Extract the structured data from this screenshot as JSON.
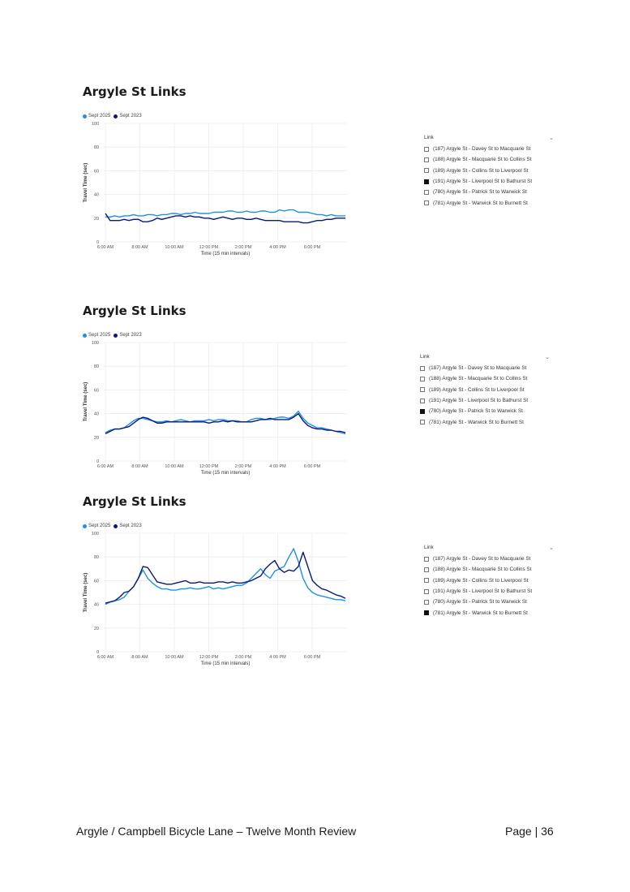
{
  "colors": {
    "sept2025": "#1e90e8",
    "sept2023": "#0a1a7a",
    "grid": "#ececec"
  },
  "chart_data": [
    {
      "type": "line",
      "title": "Argyle St Links",
      "xlabel": "Time (15 min intervals)",
      "ylabel": "Travel Time (sec)",
      "ylim": [
        0,
        100
      ],
      "yticks": [
        "100",
        "80",
        "60",
        "40",
        "20",
        "0"
      ],
      "xticks": [
        "6:00 AM",
        "8:00 AM",
        "10:00 AM",
        "12:00 PM",
        "2:00 PM",
        "4:00 PM",
        "6:00 PM"
      ],
      "legend": [
        "Sept 2025",
        "Sept 2023"
      ],
      "series": [
        {
          "name": "Sept 2025",
          "values": [
            21,
            21,
            22,
            21,
            22,
            22,
            23,
            22,
            22,
            23,
            23,
            22,
            23,
            23,
            24,
            24,
            23,
            24,
            24,
            25,
            24,
            24,
            24,
            25,
            25,
            25,
            26,
            26,
            25,
            25,
            26,
            25,
            25,
            26,
            26,
            25,
            25,
            27,
            26,
            27,
            27,
            25,
            25,
            25,
            24,
            23,
            23,
            22,
            23,
            22,
            22,
            22
          ]
        },
        {
          "name": "Sept 2023",
          "values": [
            24,
            18,
            18,
            18,
            19,
            18,
            19,
            19,
            17,
            17,
            18,
            20,
            19,
            20,
            21,
            22,
            22,
            21,
            22,
            21,
            21,
            20,
            20,
            19,
            20,
            21,
            20,
            19,
            20,
            20,
            19,
            19,
            20,
            19,
            18,
            18,
            18,
            18,
            17,
            17,
            17,
            17,
            16,
            16,
            17,
            18,
            18,
            19,
            19,
            20,
            20,
            20
          ]
        }
      ],
      "slicer": {
        "label": "Link",
        "items": [
          {
            "text": "(187) Argyle St - Davey St to Macquarie St",
            "checked": false
          },
          {
            "text": "(188) Argyle St - Macquarie St to Collins St",
            "checked": false
          },
          {
            "text": "(189) Argyle St - Collins St to Liverpool St",
            "checked": false
          },
          {
            "text": "(191) Argyle St - Liverpool St to Bathurst St",
            "checked": true
          },
          {
            "text": "(780) Argyle St - Patrick St to Warwick St",
            "checked": false
          },
          {
            "text": "(781) Argyle St - Warwick St to Burnett St",
            "checked": false
          }
        ]
      }
    },
    {
      "type": "line",
      "title": "Argyle St Links",
      "xlabel": "Time (15 min intervals)",
      "ylabel": "Travel Time (sec)",
      "ylim": [
        0,
        100
      ],
      "yticks": [
        "100",
        "80",
        "60",
        "40",
        "20",
        "0"
      ],
      "xticks": [
        "6:00 AM",
        "8:00 AM",
        "10:00 AM",
        "12:00 PM",
        "2:00 PM",
        "4:00 PM",
        "6:00 PM"
      ],
      "legend": [
        "Sept 2025",
        "Sept 2023"
      ],
      "series": [
        {
          "name": "Sept 2025",
          "values": [
            24,
            26,
            27,
            27,
            28,
            31,
            34,
            36,
            36,
            35,
            34,
            33,
            33,
            34,
            33,
            34,
            35,
            34,
            33,
            34,
            34,
            34,
            35,
            34,
            35,
            35,
            34,
            34,
            34,
            33,
            33,
            35,
            36,
            36,
            35,
            35,
            36,
            37,
            37,
            36,
            38,
            42,
            36,
            32,
            30,
            28,
            28,
            27,
            26,
            25,
            24,
            23
          ]
        },
        {
          "name": "Sept 2023",
          "values": [
            23,
            25,
            27,
            27,
            28,
            29,
            32,
            35,
            37,
            36,
            34,
            32,
            32,
            33,
            33,
            33,
            33,
            33,
            33,
            33,
            33,
            33,
            32,
            33,
            33,
            34,
            33,
            34,
            33,
            33,
            33,
            33,
            34,
            35,
            35,
            36,
            35,
            35,
            35,
            35,
            37,
            40,
            34,
            30,
            28,
            27,
            27,
            26,
            26,
            25,
            25,
            24
          ]
        }
      ],
      "slicer": {
        "label": "Link",
        "items": [
          {
            "text": "(187) Argyle St - Davey St to Macquarie St",
            "checked": false
          },
          {
            "text": "(188) Argyle St - Macquarie St to Collins St",
            "checked": false
          },
          {
            "text": "(189) Argyle St - Collins St to Liverpool St",
            "checked": false
          },
          {
            "text": "(191) Argyle St - Liverpool St to Bathurst St",
            "checked": false
          },
          {
            "text": "(780) Argyle St - Patrick St to Warwick St",
            "checked": true
          },
          {
            "text": "(781) Argyle St - Warwick St to Burnett St",
            "checked": false
          }
        ]
      }
    },
    {
      "type": "line",
      "title": "Argyle St Links",
      "xlabel": "Time (15 min intervals)",
      "ylabel": "Travel Time (sec)",
      "ylim": [
        0,
        100
      ],
      "yticks": [
        "100",
        "80",
        "60",
        "40",
        "20",
        "0"
      ],
      "xticks": [
        "6:00 AM",
        "8:00 AM",
        "10:00 AM",
        "12:00 PM",
        "2:00 PM",
        "4:00 PM",
        "6:00 PM"
      ],
      "legend": [
        "Sept 2025",
        "Sept 2023"
      ],
      "series": [
        {
          "name": "Sept 2025",
          "values": [
            40,
            42,
            43,
            44,
            46,
            51,
            55,
            62,
            69,
            62,
            58,
            55,
            53,
            53,
            52,
            52,
            53,
            53,
            54,
            53,
            53,
            54,
            55,
            53,
            54,
            53,
            54,
            55,
            56,
            56,
            58,
            62,
            66,
            70,
            65,
            62,
            68,
            70,
            72,
            80,
            87,
            76,
            62,
            54,
            50,
            48,
            47,
            46,
            45,
            44,
            44,
            43
          ]
        },
        {
          "name": "Sept 2023",
          "values": [
            41,
            42,
            43,
            46,
            50,
            51,
            55,
            62,
            72,
            71,
            65,
            59,
            58,
            57,
            57,
            58,
            59,
            60,
            58,
            58,
            59,
            58,
            58,
            58,
            59,
            59,
            58,
            59,
            58,
            58,
            59,
            60,
            62,
            64,
            70,
            74,
            77,
            70,
            67,
            69,
            68,
            72,
            84,
            72,
            60,
            56,
            53,
            52,
            50,
            48,
            47,
            45
          ]
        }
      ],
      "slicer": {
        "label": "Link",
        "items": [
          {
            "text": "(187) Argyle St - Davey St to Macquarie St",
            "checked": false
          },
          {
            "text": "(188) Argyle St - Macquarie St to Collins St",
            "checked": false
          },
          {
            "text": "(189) Argyle St - Collins St to Liverpool St",
            "checked": false
          },
          {
            "text": "(191) Argyle St - Liverpool St to Bathurst St",
            "checked": false
          },
          {
            "text": "(780) Argyle St - Patrick St to Warwick St",
            "checked": false
          },
          {
            "text": "(781) Argyle St - Warwick St to Burnett St",
            "checked": true
          }
        ]
      }
    }
  ],
  "footer": {
    "title": "Argyle / Campbell Bicycle Lane – Twelve Month Review",
    "page": "Page | 36"
  }
}
